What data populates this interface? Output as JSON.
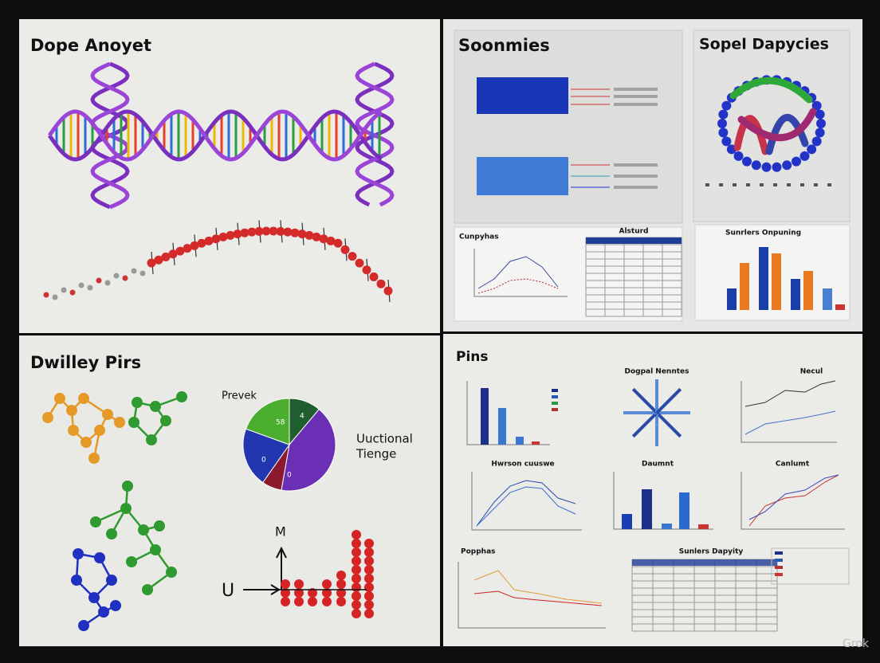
{
  "panels": {
    "dna": {
      "title": "Dope Anoyet"
    },
    "structures": {
      "title": "Soonmies"
    },
    "protein": {
      "title": "Sopel Dapycies"
    },
    "pairs": {
      "title": "Dwilley Pirs",
      "pie_title": "Prevek",
      "pie_labels": [
        "58",
        "4",
        "0",
        "0"
      ],
      "caption": [
        "Uuctional",
        "Tienge"
      ],
      "axis_labels": [
        "U",
        "M"
      ]
    },
    "pins": {
      "title": "Pins",
      "chart_titles": [
        "Dogpal Nenntes",
        "Necul",
        "Hwrson cuuswe",
        "Daumnt",
        "Canlumt",
        "Popphas",
        "Sunlers Dapyity"
      ]
    }
  },
  "small": {
    "line_chart": "Cunpyhas",
    "table": "Alsturd",
    "bar_chart": "Sunrlers Onpuning"
  },
  "watermark": "Grok"
}
